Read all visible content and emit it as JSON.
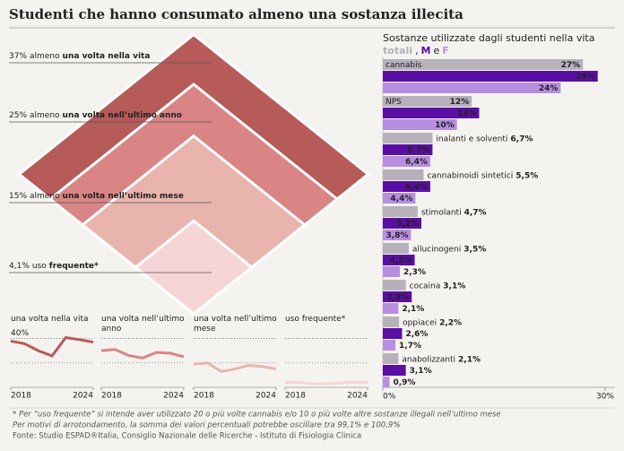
{
  "title": "Studenti che hanno consumato almeno una sostanza illecita",
  "chart_data": [
    {
      "type": "diamond",
      "items": [
        {
          "value": 37,
          "label": "37%",
          "text": "almeno",
          "bold": "una volta nella vita",
          "color": "#b75a5a"
        },
        {
          "value": 25,
          "label": "25%",
          "text": "almeno",
          "bold": "una volta nell’ultimo anno",
          "color": "#d98585"
        },
        {
          "value": 15,
          "label": "15%",
          "text": "almeno",
          "bold": "una volta nell’ultimo mese",
          "color": "#e9b4ae"
        },
        {
          "value": 4.1,
          "label": "4,1%",
          "text": "uso",
          "bold": "frequente*",
          "color": "#f6d5d6"
        }
      ]
    },
    {
      "type": "bar",
      "title": "Sostanze utilizzate dagli studenti nella vita",
      "legend_joiners": [
        ",",
        "e"
      ],
      "categories": [
        "cannabis",
        "NPS",
        "inalanti e solventi",
        "cannabinoidi sintetici",
        "stimolanti",
        "allucinogeni",
        "cocaina",
        "oppiacei",
        "anabolizzanti"
      ],
      "series": [
        {
          "name": "totali",
          "color": "#b6b1bb",
          "values": [
            27,
            12,
            6.7,
            5.5,
            4.7,
            3.5,
            3.1,
            2.2,
            2.1
          ],
          "value_labels": [
            "27%",
            "12%",
            "6,7%",
            "5,5%",
            "4,7%",
            "3,5%",
            "3,1%",
            "2,2%",
            "2,1%"
          ]
        },
        {
          "name": "M",
          "color": "#5b0ea3",
          "values": [
            29,
            13,
            6.7,
            6.4,
            5.2,
            4.3,
            3.9,
            2.6,
            3.1
          ],
          "value_labels": [
            "29%",
            "13%",
            "6,7%",
            "6,4%",
            "5,2%",
            "4,3%",
            "3,9%",
            "2,6%",
            "3,1%"
          ]
        },
        {
          "name": "F",
          "color": "#b88fe0",
          "values": [
            24,
            10,
            6.4,
            4.4,
            3.8,
            2.3,
            2.1,
            1.7,
            0.9
          ],
          "value_labels": [
            "24%",
            "10%",
            "6,4%",
            "4,4%",
            "3,8%",
            "2,3%",
            "2,1%",
            "1,7%",
            "0,9%"
          ]
        }
      ],
      "xlim": [
        0,
        30
      ],
      "xticks": [
        {
          "value": 0,
          "label": "0%"
        },
        {
          "value": 30,
          "label": "30%"
        }
      ]
    },
    {
      "type": "line",
      "title": "una volta nella vita",
      "color": "#b75a5a",
      "x": [
        2018,
        2019,
        2020,
        2021,
        2022,
        2023,
        2024
      ],
      "values": [
        37.8,
        35.7,
        30,
        25.7,
        40.7,
        39,
        37
      ],
      "xlim": [
        2018,
        2024
      ],
      "ylim": [
        0,
        44
      ],
      "xticks": [
        2018,
        2024
      ],
      "grid_values": [
        20,
        40
      ],
      "yticks": [
        {
          "value": 40,
          "label": "40%"
        }
      ]
    },
    {
      "type": "line",
      "title": "una volta nell’ultimo anno",
      "color": "#d98585",
      "x": [
        2018,
        2019,
        2020,
        2021,
        2022,
        2023,
        2024
      ],
      "values": [
        30,
        31,
        26,
        24,
        28.5,
        28,
        25
      ],
      "xlim": [
        2018,
        2024
      ],
      "ylim": [
        0,
        44
      ],
      "xticks": [
        2018,
        2024
      ],
      "grid_values": [
        20,
        40
      ]
    },
    {
      "type": "line",
      "title": "una volta nell’ultimo mese",
      "color": "#e9b4ae",
      "x": [
        2018,
        2019,
        2020,
        2021,
        2022,
        2023,
        2024
      ],
      "values": [
        19,
        20,
        13,
        15,
        18,
        17,
        15
      ],
      "xlim": [
        2018,
        2024
      ],
      "ylim": [
        0,
        44
      ],
      "xticks": [
        2018,
        2024
      ],
      "grid_values": [
        20,
        40
      ]
    },
    {
      "type": "line",
      "title": "uso frequente*",
      "color": "#f6d5d6",
      "x": [
        2018,
        2019,
        2020,
        2021,
        2022,
        2023,
        2024
      ],
      "values": [
        4,
        4,
        3,
        2.8,
        3.6,
        4.2,
        4.1
      ],
      "xlim": [
        2018,
        2024
      ],
      "ylim": [
        0,
        44
      ],
      "xticks": [
        2018,
        2024
      ],
      "grid_values": [
        20,
        40
      ]
    }
  ],
  "footnotes": [
    "* Per “uso frequente” si intende aver utilizzato 20 o più volte cannabis e/o 10 o più volte altre sostanze illegali nell’ultimo mese",
    "Per motivi di arrotondamento, la somma dei valori percentuali potrebbe oscillare tra 99,1% e 100,9%",
    "Fonte: Studio ESPAD®Italia, Consiglio Nazionale delle Ricerche - Istituto di Fisiologia Clinica"
  ]
}
